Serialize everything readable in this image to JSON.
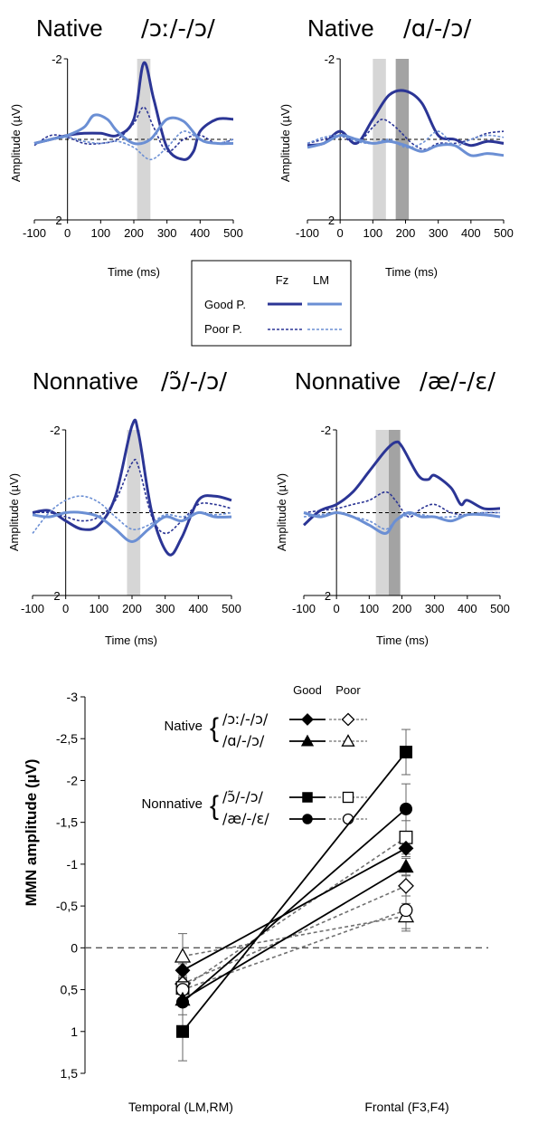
{
  "chart_data": [
    {
      "type": "line",
      "title_prefix": "Native",
      "title_ipa": "/ɔː/-/ɔ/",
      "xlabel": "Time (ms)",
      "ylabel": "Amplitude (µV)",
      "xlim": [
        -100,
        500
      ],
      "ylim": [
        -2,
        2
      ],
      "y_inverted": true,
      "xticks": [
        -100,
        0,
        100,
        200,
        300,
        400,
        500
      ],
      "yticks": [
        -2,
        2
      ],
      "highlight_windows": [
        {
          "from": 210,
          "to": 250,
          "shade": "light"
        }
      ],
      "series": [
        {
          "name": "Good P. Fz",
          "color": "#2b3595",
          "dash": false,
          "x": [
            -100,
            -50,
            0,
            50,
            100,
            150,
            200,
            230,
            260,
            300,
            350,
            380,
            400,
            450,
            500
          ],
          "y": [
            0.1,
            0.0,
            -0.1,
            -0.15,
            -0.15,
            -0.1,
            -0.5,
            -1.9,
            -1.0,
            0.2,
            0.5,
            0.3,
            -0.2,
            -0.5,
            -0.5
          ]
        },
        {
          "name": "Poor P. Fz",
          "color": "#2b3595",
          "dash": true,
          "x": [
            -100,
            -50,
            0,
            50,
            100,
            150,
            200,
            230,
            260,
            300,
            350,
            400,
            450,
            500
          ],
          "y": [
            0.15,
            -0.1,
            -0.05,
            0.1,
            0.1,
            0.0,
            -0.4,
            -0.8,
            -0.3,
            0.3,
            0.0,
            -0.1,
            0.1,
            0.0
          ]
        },
        {
          "name": "Good P. LM",
          "color": "#6b8fd4",
          "dash": false,
          "x": [
            -100,
            -50,
            0,
            50,
            80,
            120,
            150,
            200,
            250,
            300,
            350,
            400,
            450,
            500
          ],
          "y": [
            0.1,
            0.0,
            -0.1,
            -0.3,
            -0.6,
            -0.5,
            -0.2,
            0.1,
            0.0,
            -0.5,
            -0.45,
            0.0,
            0.1,
            0.1
          ]
        },
        {
          "name": "Poor P. LM",
          "color": "#6b8fd4",
          "dash": true,
          "x": [
            -100,
            -50,
            0,
            50,
            100,
            150,
            200,
            250,
            300,
            350,
            400,
            450,
            500
          ],
          "y": [
            0.1,
            0.0,
            -0.05,
            0.05,
            0.1,
            0.05,
            0.2,
            0.5,
            0.2,
            -0.2,
            0.0,
            0.1,
            0.0
          ]
        }
      ]
    },
    {
      "type": "line",
      "title_prefix": "Native",
      "title_ipa": "/ɑ/-/ɔ/",
      "xlabel": "Time (ms)",
      "ylabel": "Amplitude (µV)",
      "xlim": [
        -100,
        500
      ],
      "ylim": [
        -2,
        2
      ],
      "y_inverted": true,
      "xticks": [
        -100,
        0,
        100,
        200,
        300,
        400,
        500
      ],
      "yticks": [
        -2,
        2
      ],
      "highlight_windows": [
        {
          "from": 100,
          "to": 140,
          "shade": "light"
        },
        {
          "from": 170,
          "to": 210,
          "shade": "dark"
        }
      ],
      "series": [
        {
          "name": "Good P. Fz",
          "color": "#2b3595",
          "dash": false,
          "x": [
            -100,
            -50,
            0,
            50,
            100,
            150,
            200,
            250,
            300,
            350,
            400,
            450,
            500
          ],
          "y": [
            0.15,
            0.1,
            -0.2,
            0.1,
            -0.5,
            -1.1,
            -1.2,
            -0.9,
            -0.1,
            0.0,
            0.15,
            0.05,
            0.1
          ]
        },
        {
          "name": "Poor P. Fz",
          "color": "#2b3595",
          "dash": true,
          "x": [
            -100,
            -50,
            0,
            50,
            100,
            130,
            170,
            220,
            260,
            300,
            350,
            400,
            450,
            500
          ],
          "y": [
            0.1,
            0.0,
            -0.1,
            0.1,
            -0.3,
            -0.5,
            -0.3,
            0.1,
            0.25,
            0.1,
            0.1,
            0.0,
            -0.15,
            -0.2
          ]
        },
        {
          "name": "Good P. LM",
          "color": "#6b8fd4",
          "dash": false,
          "x": [
            -100,
            -50,
            0,
            50,
            100,
            150,
            200,
            250,
            300,
            350,
            400,
            450,
            500
          ],
          "y": [
            0.2,
            0.1,
            -0.1,
            0.0,
            0.1,
            0.05,
            0.15,
            0.3,
            0.15,
            0.15,
            0.4,
            0.35,
            0.4
          ]
        },
        {
          "name": "Poor P. LM",
          "color": "#6b8fd4",
          "dash": true,
          "x": [
            -100,
            -50,
            0,
            50,
            100,
            150,
            200,
            250,
            300,
            350,
            400,
            450,
            500
          ],
          "y": [
            0.1,
            -0.05,
            -0.1,
            0.05,
            0.1,
            0.0,
            0.2,
            0.1,
            -0.2,
            0.15,
            0.0,
            -0.1,
            -0.05
          ]
        }
      ]
    },
    {
      "type": "line",
      "title_prefix": "Nonnative",
      "title_ipa": "/ɔ̃/-/ɔ/",
      "xlabel": "Time (ms)",
      "ylabel": "Amplitude (µV)",
      "xlim": [
        -100,
        500
      ],
      "ylim": [
        -2,
        2
      ],
      "y_inverted": true,
      "xticks": [
        -100,
        0,
        100,
        200,
        300,
        400,
        500
      ],
      "yticks": [
        -2,
        2
      ],
      "highlight_windows": [
        {
          "from": 185,
          "to": 225,
          "shade": "light"
        }
      ],
      "series": [
        {
          "name": "Good P. Fz",
          "color": "#2b3595",
          "dash": false,
          "x": [
            -100,
            -50,
            0,
            50,
            100,
            150,
            200,
            220,
            260,
            310,
            350,
            400,
            450,
            500
          ],
          "y": [
            0.0,
            -0.05,
            0.2,
            0.4,
            0.3,
            -0.4,
            -2.1,
            -1.9,
            0.0,
            1.0,
            0.6,
            -0.3,
            -0.4,
            -0.3
          ]
        },
        {
          "name": "Poor P. Fz",
          "color": "#2b3595",
          "dash": true,
          "x": [
            -100,
            -50,
            0,
            50,
            100,
            150,
            200,
            220,
            260,
            300,
            350,
            400,
            450,
            500
          ],
          "y": [
            0.0,
            0.0,
            0.1,
            0.2,
            0.1,
            -0.3,
            -1.2,
            -1.1,
            0.1,
            0.5,
            0.2,
            -0.2,
            -0.2,
            -0.1
          ]
        },
        {
          "name": "Good P. LM",
          "color": "#6b8fd4",
          "dash": false,
          "x": [
            -100,
            -50,
            0,
            50,
            100,
            150,
            200,
            250,
            300,
            350,
            400,
            450,
            500
          ],
          "y": [
            0.05,
            0.1,
            0.0,
            0.0,
            0.1,
            0.4,
            0.7,
            0.4,
            0.1,
            0.2,
            0.0,
            0.1,
            0.1
          ]
        },
        {
          "name": "Poor P. LM",
          "color": "#6b8fd4",
          "dash": true,
          "x": [
            -100,
            -50,
            0,
            50,
            100,
            150,
            200,
            250,
            300,
            350,
            400,
            450,
            500
          ],
          "y": [
            0.5,
            0.0,
            -0.3,
            -0.4,
            -0.25,
            0.1,
            0.4,
            0.3,
            0.05,
            0.1,
            0.0,
            0.05,
            0.0
          ]
        }
      ]
    },
    {
      "type": "line",
      "title_prefix": "Nonnative",
      "title_ipa": "/æ/-/ɛ/",
      "xlabel": "Time (ms)",
      "ylabel": "Amplitude (µV)",
      "xlim": [
        -100,
        500
      ],
      "ylim": [
        -2,
        2
      ],
      "y_inverted": true,
      "xticks": [
        -100,
        0,
        100,
        200,
        300,
        400,
        500
      ],
      "yticks": [
        -2,
        2
      ],
      "highlight_windows": [
        {
          "from": 120,
          "to": 165,
          "shade": "light"
        },
        {
          "from": 160,
          "to": 195,
          "shade": "dark"
        }
      ],
      "series": [
        {
          "name": "Good P. Fz",
          "color": "#2b3595",
          "dash": false,
          "x": [
            -100,
            -50,
            0,
            50,
            100,
            150,
            180,
            200,
            250,
            280,
            300,
            350,
            380,
            400,
            450,
            500
          ],
          "y": [
            0.3,
            -0.05,
            -0.2,
            -0.5,
            -1.0,
            -1.5,
            -1.7,
            -1.6,
            -0.9,
            -0.8,
            -0.9,
            -0.6,
            -0.2,
            -0.3,
            -0.1,
            -0.1
          ]
        },
        {
          "name": "Poor P. Fz",
          "color": "#2b3595",
          "dash": true,
          "x": [
            -100,
            -50,
            0,
            50,
            100,
            150,
            180,
            220,
            260,
            300,
            350,
            400,
            450,
            500
          ],
          "y": [
            0.0,
            -0.05,
            -0.1,
            -0.2,
            -0.3,
            -0.5,
            -0.3,
            0.1,
            -0.1,
            -0.2,
            0.0,
            0.05,
            0.0,
            0.0
          ]
        },
        {
          "name": "Good P. LM",
          "color": "#6b8fd4",
          "dash": false,
          "x": [
            -100,
            -50,
            0,
            50,
            100,
            150,
            180,
            220,
            260,
            300,
            350,
            400,
            450,
            500
          ],
          "y": [
            0.0,
            0.1,
            0.0,
            0.1,
            0.3,
            0.5,
            0.2,
            0.0,
            0.1,
            0.1,
            0.2,
            0.05,
            0.05,
            0.1
          ]
        },
        {
          "name": "Poor P. LM",
          "color": "#6b8fd4",
          "dash": true,
          "x": [
            -100,
            -50,
            0,
            50,
            100,
            150,
            180,
            220,
            260,
            300,
            350,
            400,
            450,
            500
          ],
          "y": [
            0.1,
            0.05,
            0.0,
            0.1,
            0.2,
            0.4,
            0.2,
            0.05,
            0.05,
            0.1,
            0.1,
            0.05,
            0.0,
            0.0
          ]
        }
      ]
    },
    {
      "type": "line",
      "categories": [
        "Temporal (LM,RM)",
        "Frontal (F3,F4)"
      ],
      "ylabel": "MMN amplitude (µV)",
      "ylim": [
        -3,
        1.5
      ],
      "y_inverted": true,
      "yticks": [
        -3,
        -2.5,
        -2,
        -1.5,
        -1,
        -0.5,
        0,
        0.5,
        1,
        1.5
      ],
      "ytick_labels": [
        "-3",
        "-2,5",
        "-2",
        "-1,5",
        "-1",
        "-0,5",
        "0",
        "0,5",
        "1",
        "1,5"
      ],
      "zero_line": "dashed",
      "legend_placement": "top-left",
      "legend": {
        "col_good": "Good",
        "col_poor": "Poor",
        "group_native": "Native",
        "group_nonnative": "Nonnative",
        "contrasts": [
          "/ɔː/-/ɔ/",
          "/ɑ/-/ɔ/",
          "/ɔ̃/-/ɔ/",
          "/æ/-/ɛ/"
        ]
      },
      "series": [
        {
          "name": "/ɔː/-/ɔ/ Good",
          "marker": "diamond",
          "filled": true,
          "values": [
            0.27,
            -1.19
          ],
          "errors": [
            0.08,
            0.1
          ]
        },
        {
          "name": "/ɑ/-/ɔ/ Good",
          "marker": "triangle",
          "filled": true,
          "values": [
            0.62,
            -0.97
          ],
          "errors": [
            0.08,
            0.1
          ]
        },
        {
          "name": "/ɔ̃/-/ɔ/ Good",
          "marker": "square",
          "filled": true,
          "values": [
            1.0,
            -2.34
          ],
          "errors": [
            0.35,
            0.27
          ]
        },
        {
          "name": "/æ/-/ɛ/ Good",
          "marker": "circle",
          "filled": true,
          "values": [
            0.65,
            -1.66
          ],
          "errors": [
            0.15,
            0.3
          ]
        },
        {
          "name": "/ɔː/-/ɔ/ Poor",
          "marker": "diamond",
          "filled": false,
          "values": [
            0.43,
            -0.74
          ],
          "errors": [
            0.1,
            0.12
          ]
        },
        {
          "name": "/ɑ/-/ɔ/ Poor",
          "marker": "triangle",
          "filled": false,
          "values": [
            0.1,
            -0.38
          ],
          "errors": [
            0.27,
            0.15
          ]
        },
        {
          "name": "/ɔ̃/-/ɔ/ Poor",
          "marker": "square",
          "filled": false,
          "values": [
            0.48,
            -1.32
          ],
          "errors": [
            0.12,
            0.2
          ]
        },
        {
          "name": "/æ/-/ɛ/ Poor",
          "marker": "circle",
          "filled": false,
          "values": [
            0.5,
            -0.45
          ],
          "errors": [
            0.12,
            0.25
          ]
        }
      ]
    }
  ],
  "legend_box": {
    "col_fz": "Fz",
    "col_lm": "LM",
    "row_good": "Good P.",
    "row_poor": "Poor P."
  },
  "colors": {
    "fz": "#2b3595",
    "lm": "#6b8fd4",
    "shade_light": "#d6d6d6",
    "shade_dark": "#a3a3a3",
    "poor_dash": "#707070"
  }
}
